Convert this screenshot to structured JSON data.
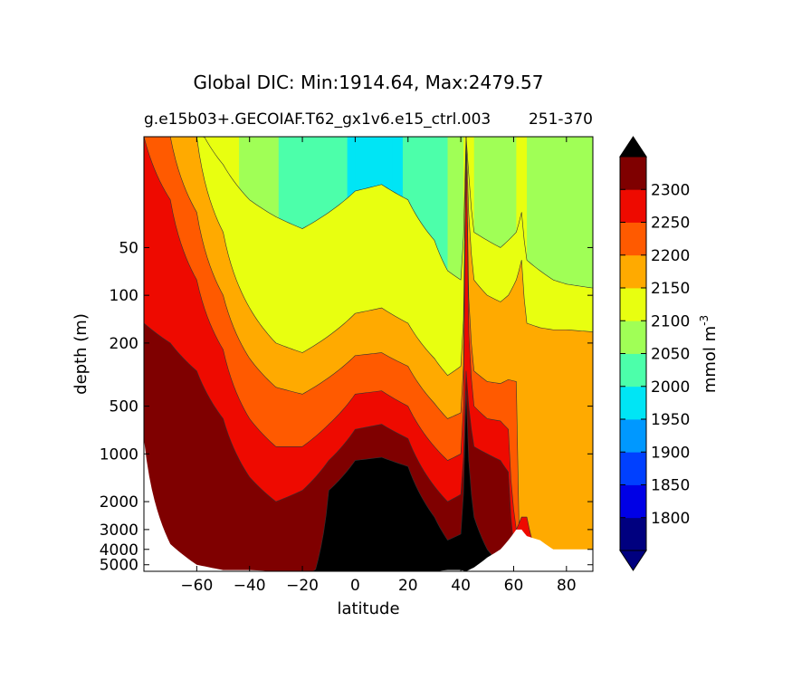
{
  "figure": {
    "title": "Global DIC: Min:1914.64, Max:2479.57",
    "subtitle_left": "g.e15b03+.GECOIAF.T62_gx1v6.e15_ctrl.003",
    "subtitle_right": "251-370"
  },
  "chart_data": {
    "type": "contour",
    "xlabel": "latitude",
    "ylabel": "depth (m)",
    "xlim": [
      -80,
      90
    ],
    "ylim": [
      5500,
      10
    ],
    "y_scale": "log",
    "x_ticks": [
      "-60",
      "-40",
      "-20",
      "0",
      "20",
      "40",
      "60",
      "80"
    ],
    "y_ticks": [
      "50",
      "100",
      "200",
      "500",
      "1000",
      "2000",
      "3000",
      "4000",
      "5000"
    ],
    "colorbar": {
      "label": "mmol m",
      "label_exponent": "-3",
      "extend": "both",
      "levels": [
        1750,
        1800,
        1850,
        1900,
        1950,
        2000,
        2050,
        2100,
        2150,
        2200,
        2250,
        2300,
        2350
      ],
      "tick_labels": [
        "1800",
        "1850",
        "1900",
        "1950",
        "2000",
        "2050",
        "2100",
        "2150",
        "2200",
        "2250",
        "2300"
      ],
      "colors": [
        "#00007f",
        "#0000e6",
        "#0040ff",
        "#0098ff",
        "#00e5f5",
        "#4cffaa",
        "#a0ff56",
        "#e8ff10",
        "#ffaa00",
        "#ff5a00",
        "#ee0a00",
        "#7f0000"
      ],
      "under_color": "#00007f",
      "over_color": "#000000"
    },
    "missing_color": "#ffffff",
    "field_value_range": [
      1914.64,
      2479.57
    ],
    "field_profiles": {
      "latitudes": [
        -80,
        -70,
        -60,
        -50,
        -40,
        -30,
        -20,
        -10,
        0,
        10,
        20,
        30,
        35,
        40,
        42,
        45,
        50,
        55,
        58,
        61,
        63,
        65,
        70,
        75,
        80,
        90
      ],
      "surface_dic": [
        2180,
        2170,
        2155,
        2120,
        2080,
        2050,
        2040,
        2010,
        1995,
        1980,
        2005,
        2035,
        2050,
        2070,
        2130,
        2090,
        2080,
        2070,
        2075,
        2100,
        2120,
        2080,
        2070,
        2060,
        2080,
        2100
      ],
      "iso_depths_m": {
        "2100": [
          8,
          8,
          8,
          15,
          25,
          32,
          38,
          30,
          22,
          20,
          25,
          45,
          70,
          80,
          6,
          40,
          45,
          50,
          45,
          40,
          30,
          60,
          70,
          80,
          85,
          90
        ],
        "2150": [
          8,
          8,
          10,
          40,
          120,
          200,
          230,
          180,
          130,
          120,
          150,
          250,
          320,
          280,
          6,
          80,
          100,
          110,
          100,
          80,
          60,
          150,
          160,
          165,
          165,
          170
        ],
        "2200": [
          8,
          10,
          30,
          100,
          250,
          380,
          420,
          330,
          240,
          230,
          280,
          480,
          600,
          550,
          6,
          300,
          350,
          360,
          340,
          350,
          5000,
          5000,
          5000,
          5000,
          5000,
          5000
        ],
        "2250": [
          10,
          25,
          80,
          220,
          600,
          900,
          900,
          650,
          420,
          400,
          500,
          900,
          1100,
          1000,
          6,
          500,
          600,
          620,
          700,
          3000,
          2500,
          2500,
          5000,
          5000,
          5000,
          5000
        ],
        "2300": [
          150,
          200,
          300,
          600,
          1400,
          2000,
          1700,
          1100,
          700,
          650,
          800,
          1600,
          2000,
          1800,
          300,
          900,
          1000,
          1100,
          1300,
          5000,
          5000,
          5000,
          5000,
          5000,
          5000,
          5000
        ],
        "2350": [
          9000,
          9000,
          9000,
          9000,
          9000,
          9000,
          9000,
          1700,
          1100,
          1050,
          1200,
          2500,
          3500,
          3200,
          400,
          2500,
          4000,
          5000,
          9000,
          9000,
          9000,
          9000,
          9000,
          9000,
          9000,
          9000
        ]
      },
      "bottom_depth_m": [
        800,
        3700,
        5000,
        5400,
        5400,
        5500,
        5500,
        5500,
        5500,
        5500,
        5500,
        5500,
        5400,
        5400,
        5500,
        5200,
        4500,
        4000,
        3500,
        3000,
        3000,
        3300,
        3500,
        4000,
        4000,
        4000
      ]
    }
  }
}
